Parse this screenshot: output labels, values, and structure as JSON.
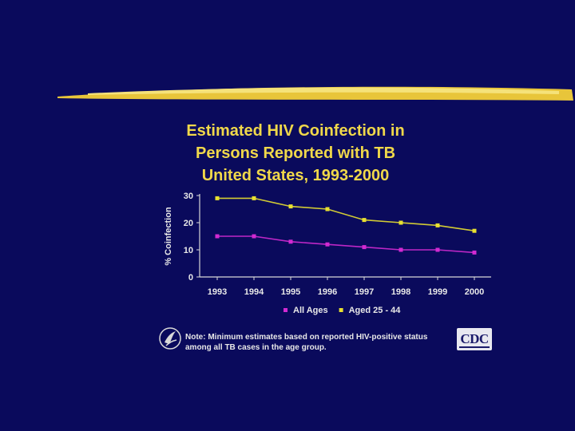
{
  "slide": {
    "background": "#0a0a5c",
    "accent": "#f0d84a"
  },
  "chart_data": {
    "type": "line",
    "title_lines": [
      "Estimated HIV Coinfection in",
      "Persons Reported with TB",
      "United States, 1993-2000"
    ],
    "xlabel": "",
    "ylabel": "% Coinfection",
    "categories": [
      "1993",
      "1994",
      "1995",
      "1996",
      "1997",
      "1998",
      "1999",
      "2000"
    ],
    "ylim": [
      0,
      30
    ],
    "yticks": [
      0,
      10,
      20,
      30
    ],
    "grid": false,
    "legend_position": "bottom",
    "series": [
      {
        "name": "All Ages",
        "color": "#d22ad2",
        "values": [
          15,
          15,
          13,
          12,
          11,
          10,
          10,
          9
        ]
      },
      {
        "name": "Aged 25 - 44",
        "color": "#e8e030",
        "values": [
          29,
          29,
          26,
          25,
          21,
          20,
          19,
          17
        ]
      }
    ]
  },
  "footer": {
    "note_lines": [
      "Note: Minimum estimates based on reported HIV-positive status",
      "among all TB cases in the age group."
    ],
    "logo_text": "CDC"
  }
}
